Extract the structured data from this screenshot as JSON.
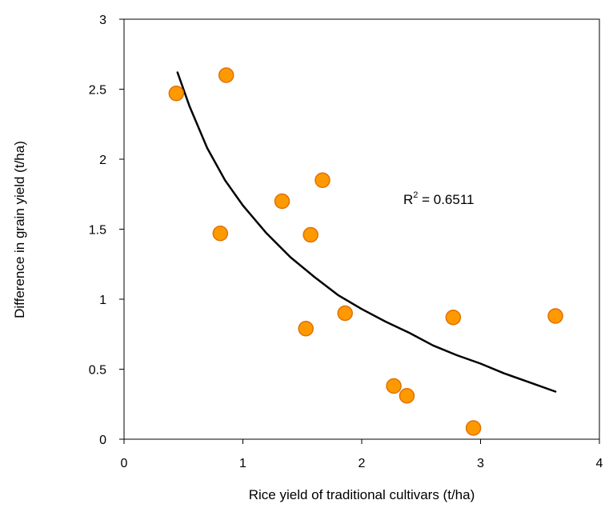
{
  "chart_data": {
    "type": "scatter",
    "xlabel": "Rice yield of traditional cultivars (t/ha)",
    "ylabel": "Difference in grain yield (t/ha)",
    "xlim": [
      0,
      4
    ],
    "ylim": [
      0,
      3
    ],
    "x_ticks": [
      {
        "value": 0,
        "label": "0"
      },
      {
        "value": 1,
        "label": "1"
      },
      {
        "value": 2,
        "label": "2"
      },
      {
        "value": 3,
        "label": "3"
      },
      {
        "value": 4,
        "label": "4"
      }
    ],
    "y_ticks": [
      {
        "value": 0,
        "label": "0"
      },
      {
        "value": 0.5,
        "label": "0.5"
      },
      {
        "value": 1,
        "label": "1"
      },
      {
        "value": 1.5,
        "label": "1.5"
      },
      {
        "value": 2,
        "label": "2"
      },
      {
        "value": 2.5,
        "label": "2.5"
      },
      {
        "value": 3,
        "label": "3"
      }
    ],
    "series": [
      {
        "marker_color": "#FF9900",
        "marker_edge_color": "#E07000",
        "points": [
          {
            "x": 0.44,
            "y": 2.47
          },
          {
            "x": 0.86,
            "y": 2.6
          },
          {
            "x": 0.81,
            "y": 1.47
          },
          {
            "x": 1.33,
            "y": 1.7
          },
          {
            "x": 1.57,
            "y": 1.46
          },
          {
            "x": 1.67,
            "y": 1.85
          },
          {
            "x": 1.53,
            "y": 0.79
          },
          {
            "x": 1.86,
            "y": 0.9
          },
          {
            "x": 2.27,
            "y": 0.38
          },
          {
            "x": 2.38,
            "y": 0.31
          },
          {
            "x": 2.77,
            "y": 0.87
          },
          {
            "x": 2.94,
            "y": 0.08
          },
          {
            "x": 3.63,
            "y": 0.88
          }
        ]
      }
    ],
    "trendline": {
      "type": "logarithmic",
      "color": "#000000",
      "points": [
        {
          "x": 0.45,
          "y": 2.62
        },
        {
          "x": 0.55,
          "y": 2.38
        },
        {
          "x": 0.7,
          "y": 2.08
        },
        {
          "x": 0.85,
          "y": 1.85
        },
        {
          "x": 1.0,
          "y": 1.67
        },
        {
          "x": 1.2,
          "y": 1.47
        },
        {
          "x": 1.4,
          "y": 1.3
        },
        {
          "x": 1.6,
          "y": 1.16
        },
        {
          "x": 1.8,
          "y": 1.03
        },
        {
          "x": 2.0,
          "y": 0.93
        },
        {
          "x": 2.2,
          "y": 0.84
        },
        {
          "x": 2.4,
          "y": 0.76
        },
        {
          "x": 2.6,
          "y": 0.67
        },
        {
          "x": 2.8,
          "y": 0.6
        },
        {
          "x": 3.0,
          "y": 0.54
        },
        {
          "x": 3.2,
          "y": 0.47
        },
        {
          "x": 3.4,
          "y": 0.41
        },
        {
          "x": 3.63,
          "y": 0.34
        }
      ]
    },
    "annotation": {
      "base": "R",
      "sup": "2",
      "rest": " = 0.6511",
      "x": 2.35,
      "y": 1.68
    },
    "grid": false,
    "legend": "none"
  }
}
